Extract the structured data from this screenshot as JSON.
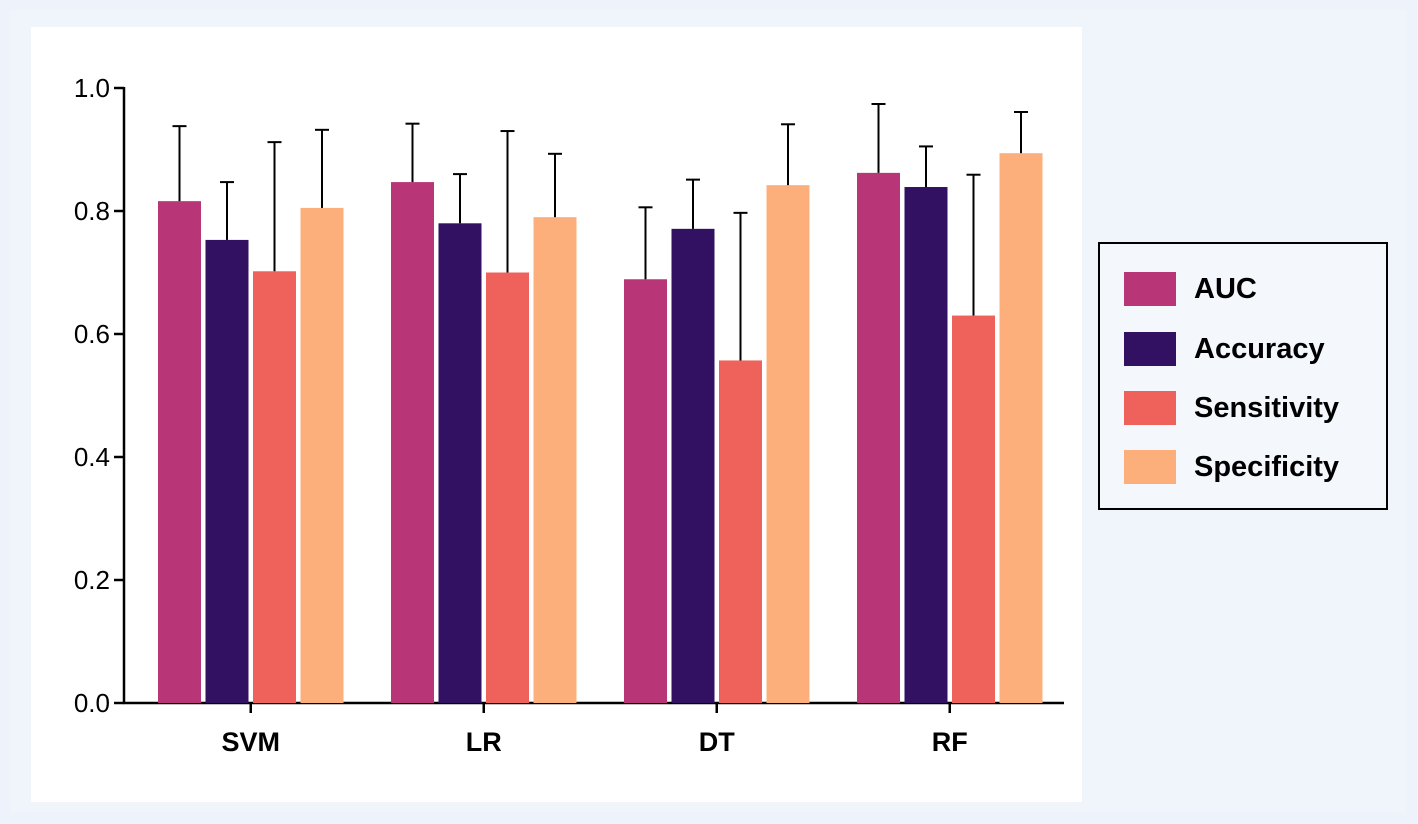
{
  "chart_data": {
    "type": "bar",
    "categories": [
      "SVM",
      "LR",
      "DT",
      "RF"
    ],
    "series": [
      {
        "name": "AUC",
        "color": "#b83577",
        "values": [
          0.816,
          0.847,
          0.689,
          0.862
        ],
        "errors": [
          0.122,
          0.095,
          0.117,
          0.112
        ]
      },
      {
        "name": "Accuracy",
        "color": "#321162",
        "values": [
          0.753,
          0.78,
          0.771,
          0.839
        ],
        "errors": [
          0.094,
          0.08,
          0.08,
          0.066
        ]
      },
      {
        "name": "Sensitivity",
        "color": "#ef625c",
        "values": [
          0.702,
          0.7,
          0.557,
          0.63
        ],
        "errors": [
          0.21,
          0.23,
          0.24,
          0.229
        ]
      },
      {
        "name": "Specificity",
        "color": "#fcaf7b",
        "values": [
          0.805,
          0.79,
          0.842,
          0.894
        ],
        "errors": [
          0.127,
          0.103,
          0.099,
          0.067
        ]
      }
    ],
    "ylim": [
      0,
      1.0
    ],
    "yticks": [
      "0.0",
      "0.2",
      "0.4",
      "0.6",
      "0.8",
      "1.0"
    ],
    "xlabel": "",
    "ylabel": "",
    "title": "",
    "grid": false,
    "legend_position": "right"
  }
}
